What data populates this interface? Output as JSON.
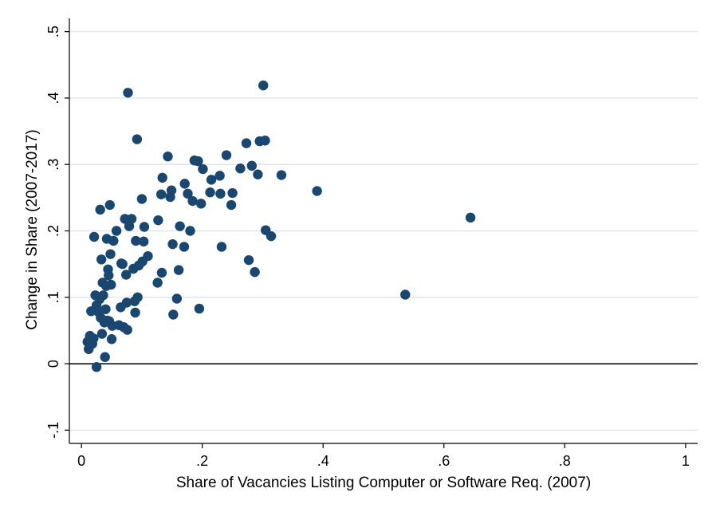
{
  "chart_data": {
    "type": "scatter",
    "xlabel": "Share of Vacancies Listing Computer or Software Req. (2007)",
    "ylabel": "Change in Share (2007-2017)",
    "xlim": [
      -0.02,
      1.02
    ],
    "ylim": [
      -0.12,
      0.52
    ],
    "x_ticks": [
      {
        "value": 0,
        "label": "0"
      },
      {
        "value": 0.2,
        "label": ".2"
      },
      {
        "value": 0.4,
        "label": ".4"
      },
      {
        "value": 0.6,
        "label": ".6"
      },
      {
        "value": 0.8,
        "label": ".8"
      },
      {
        "value": 1,
        "label": "1"
      }
    ],
    "y_ticks": [
      {
        "value": -0.1,
        "label": "-.1"
      },
      {
        "value": 0,
        "label": "0"
      },
      {
        "value": 0.1,
        "label": ".1"
      },
      {
        "value": 0.2,
        "label": ".2"
      },
      {
        "value": 0.3,
        "label": ".3"
      },
      {
        "value": 0.4,
        "label": ".4"
      },
      {
        "value": 0.5,
        "label": ".5"
      }
    ],
    "grid": "horizontal",
    "reference_line_y": 0,
    "colors": {
      "marker": "#1a476f",
      "grid": "#e6e6e6",
      "axis": "#000000"
    },
    "points": [
      {
        "x": 0.01,
        "y": 0.033
      },
      {
        "x": 0.012,
        "y": 0.022
      },
      {
        "x": 0.014,
        "y": 0.042
      },
      {
        "x": 0.016,
        "y": 0.079
      },
      {
        "x": 0.018,
        "y": 0.03
      },
      {
        "x": 0.02,
        "y": 0.038
      },
      {
        "x": 0.021,
        "y": 0.191
      },
      {
        "x": 0.023,
        "y": 0.103
      },
      {
        "x": 0.025,
        "y": 0.088
      },
      {
        "x": 0.025,
        "y": -0.005
      },
      {
        "x": 0.028,
        "y": 0.078
      },
      {
        "x": 0.03,
        "y": 0.097
      },
      {
        "x": 0.031,
        "y": 0.232
      },
      {
        "x": 0.032,
        "y": 0.069
      },
      {
        "x": 0.033,
        "y": 0.157
      },
      {
        "x": 0.034,
        "y": 0.045
      },
      {
        "x": 0.035,
        "y": 0.122
      },
      {
        "x": 0.036,
        "y": 0.103
      },
      {
        "x": 0.038,
        "y": 0.062
      },
      {
        "x": 0.039,
        "y": 0.01
      },
      {
        "x": 0.04,
        "y": 0.082
      },
      {
        "x": 0.041,
        "y": 0.117
      },
      {
        "x": 0.042,
        "y": 0.188
      },
      {
        "x": 0.043,
        "y": 0.065
      },
      {
        "x": 0.044,
        "y": 0.142
      },
      {
        "x": 0.045,
        "y": 0.133
      },
      {
        "x": 0.046,
        "y": 0.064
      },
      {
        "x": 0.047,
        "y": 0.239
      },
      {
        "x": 0.048,
        "y": 0.165
      },
      {
        "x": 0.049,
        "y": 0.119
      },
      {
        "x": 0.05,
        "y": 0.037
      },
      {
        "x": 0.051,
        "y": 0.057
      },
      {
        "x": 0.053,
        "y": 0.185
      },
      {
        "x": 0.058,
        "y": 0.2
      },
      {
        "x": 0.062,
        "y": 0.058
      },
      {
        "x": 0.065,
        "y": 0.085
      },
      {
        "x": 0.066,
        "y": 0.151
      },
      {
        "x": 0.068,
        "y": 0.15
      },
      {
        "x": 0.07,
        "y": 0.055
      },
      {
        "x": 0.072,
        "y": 0.218
      },
      {
        "x": 0.074,
        "y": 0.134
      },
      {
        "x": 0.075,
        "y": 0.092
      },
      {
        "x": 0.076,
        "y": 0.051
      },
      {
        "x": 0.077,
        "y": 0.408
      },
      {
        "x": 0.079,
        "y": 0.207
      },
      {
        "x": 0.083,
        "y": 0.218
      },
      {
        "x": 0.086,
        "y": 0.143
      },
      {
        "x": 0.088,
        "y": 0.094
      },
      {
        "x": 0.089,
        "y": 0.077
      },
      {
        "x": 0.09,
        "y": 0.185
      },
      {
        "x": 0.092,
        "y": 0.338
      },
      {
        "x": 0.093,
        "y": 0.1
      },
      {
        "x": 0.095,
        "y": 0.148
      },
      {
        "x": 0.1,
        "y": 0.248
      },
      {
        "x": 0.101,
        "y": 0.154
      },
      {
        "x": 0.103,
        "y": 0.184
      },
      {
        "x": 0.104,
        "y": 0.206
      },
      {
        "x": 0.11,
        "y": 0.162
      },
      {
        "x": 0.126,
        "y": 0.122
      },
      {
        "x": 0.127,
        "y": 0.216
      },
      {
        "x": 0.132,
        "y": 0.255
      },
      {
        "x": 0.133,
        "y": 0.137
      },
      {
        "x": 0.134,
        "y": 0.28
      },
      {
        "x": 0.143,
        "y": 0.312
      },
      {
        "x": 0.147,
        "y": 0.251
      },
      {
        "x": 0.149,
        "y": 0.261
      },
      {
        "x": 0.151,
        "y": 0.18
      },
      {
        "x": 0.152,
        "y": 0.074
      },
      {
        "x": 0.158,
        "y": 0.098
      },
      {
        "x": 0.161,
        "y": 0.141
      },
      {
        "x": 0.163,
        "y": 0.207
      },
      {
        "x": 0.17,
        "y": 0.176
      },
      {
        "x": 0.171,
        "y": 0.271
      },
      {
        "x": 0.176,
        "y": 0.256
      },
      {
        "x": 0.18,
        "y": 0.2
      },
      {
        "x": 0.184,
        "y": 0.245
      },
      {
        "x": 0.187,
        "y": 0.306
      },
      {
        "x": 0.193,
        "y": 0.305
      },
      {
        "x": 0.195,
        "y": 0.083
      },
      {
        "x": 0.198,
        "y": 0.241
      },
      {
        "x": 0.201,
        "y": 0.293
      },
      {
        "x": 0.213,
        "y": 0.258
      },
      {
        "x": 0.215,
        "y": 0.277
      },
      {
        "x": 0.229,
        "y": 0.283
      },
      {
        "x": 0.23,
        "y": 0.256
      },
      {
        "x": 0.232,
        "y": 0.176
      },
      {
        "x": 0.24,
        "y": 0.314
      },
      {
        "x": 0.248,
        "y": 0.239
      },
      {
        "x": 0.25,
        "y": 0.257
      },
      {
        "x": 0.263,
        "y": 0.294
      },
      {
        "x": 0.273,
        "y": 0.332
      },
      {
        "x": 0.277,
        "y": 0.156
      },
      {
        "x": 0.282,
        "y": 0.298
      },
      {
        "x": 0.287,
        "y": 0.138
      },
      {
        "x": 0.292,
        "y": 0.285
      },
      {
        "x": 0.295,
        "y": 0.335
      },
      {
        "x": 0.301,
        "y": 0.419
      },
      {
        "x": 0.304,
        "y": 0.336
      },
      {
        "x": 0.305,
        "y": 0.201
      },
      {
        "x": 0.314,
        "y": 0.192
      },
      {
        "x": 0.331,
        "y": 0.284
      },
      {
        "x": 0.39,
        "y": 0.26
      },
      {
        "x": 0.536,
        "y": 0.104
      },
      {
        "x": 0.644,
        "y": 0.22
      }
    ]
  }
}
